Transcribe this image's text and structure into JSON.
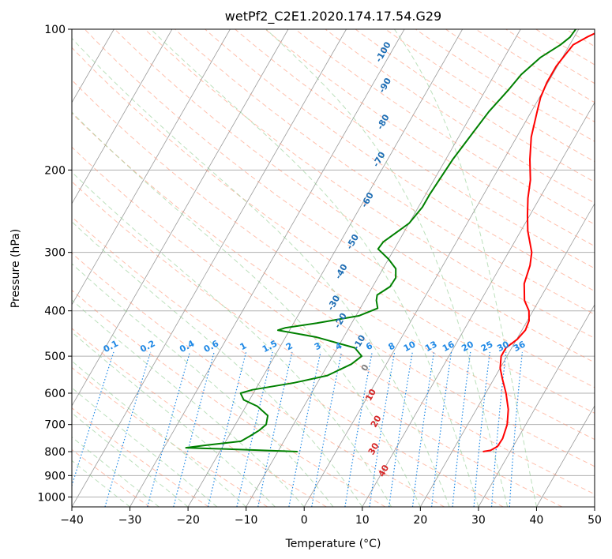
{
  "chart_data": {
    "type": "line",
    "subtype": "skew-T log-P diagram",
    "title": "wetPf2_C2E1.2020.174.17.54.G29",
    "xlabel": "Temperature (°C)",
    "ylabel": "Pressure (hPa)",
    "xlim": [
      -40,
      50
    ],
    "ylim": [
      1050,
      100
    ],
    "y_scale": "log",
    "x_ticks": [
      "−40",
      "−30",
      "−20",
      "−10",
      "0",
      "10",
      "20",
      "30",
      "40",
      "50"
    ],
    "x_tick_values": [
      -40,
      -30,
      -20,
      -10,
      0,
      10,
      20,
      30,
      40,
      50
    ],
    "y_ticks": [
      "100",
      "200",
      "300",
      "400",
      "500",
      "600",
      "700",
      "800",
      "900",
      "1000"
    ],
    "y_tick_values": [
      100,
      200,
      300,
      400,
      500,
      600,
      700,
      800,
      900,
      1000
    ],
    "grid": true,
    "series": [
      {
        "name": "",
        "role": "temperature",
        "color": "#ff0000",
        "points": [
          [
            800,
            25.3
          ],
          [
            795,
            26.5
          ],
          [
            780,
            27.3
          ],
          [
            750,
            27.4
          ],
          [
            700,
            26.8
          ],
          [
            650,
            25.5
          ],
          [
            600,
            23.5
          ],
          [
            560,
            21.5
          ],
          [
            530,
            20.0
          ],
          [
            500,
            19.0
          ],
          [
            480,
            19.0
          ],
          [
            460,
            20.1
          ],
          [
            440,
            20.6
          ],
          [
            420,
            20.3
          ],
          [
            400,
            19.3
          ],
          [
            380,
            17.5
          ],
          [
            350,
            15.8
          ],
          [
            320,
            15.0
          ],
          [
            300,
            14.0
          ],
          [
            270,
            11.2
          ],
          [
            250,
            9.6
          ],
          [
            230,
            8.0
          ],
          [
            210,
            6.6
          ],
          [
            190,
            4.5
          ],
          [
            170,
            2.5
          ],
          [
            150,
            1.0
          ],
          [
            140,
            0.2
          ],
          [
            130,
            -0.2
          ],
          [
            120,
            -0.2
          ],
          [
            115,
            0.1
          ],
          [
            108,
            0.6
          ],
          [
            104,
            2.2
          ],
          [
            100,
            4.3
          ]
        ]
      },
      {
        "name": "",
        "role": "dewpoint",
        "color": "#008000",
        "points": [
          [
            800,
            -6.6
          ],
          [
            790,
            -19.0
          ],
          [
            785,
            -26.2
          ],
          [
            775,
            -23.0
          ],
          [
            760,
            -17.4
          ],
          [
            740,
            -16.3
          ],
          [
            720,
            -15.3
          ],
          [
            700,
            -14.7
          ],
          [
            670,
            -15.3
          ],
          [
            640,
            -18.0
          ],
          [
            620,
            -21.0
          ],
          [
            600,
            -22.2
          ],
          [
            590,
            -20.5
          ],
          [
            570,
            -14.0
          ],
          [
            550,
            -9.0
          ],
          [
            520,
            -6.0
          ],
          [
            500,
            -5.0
          ],
          [
            480,
            -7.0
          ],
          [
            455,
            -14.8
          ],
          [
            440,
            -22.0
          ],
          [
            435,
            -21.0
          ],
          [
            425,
            -16.0
          ],
          [
            410,
            -9.5
          ],
          [
            395,
            -7.0
          ],
          [
            380,
            -8.0
          ],
          [
            370,
            -8.4
          ],
          [
            355,
            -7.0
          ],
          [
            340,
            -6.9
          ],
          [
            325,
            -7.8
          ],
          [
            310,
            -10.0
          ],
          [
            295,
            -12.8
          ],
          [
            285,
            -12.6
          ],
          [
            260,
            -10.0
          ],
          [
            240,
            -9.3
          ],
          [
            225,
            -9.3
          ],
          [
            210,
            -9.1
          ],
          [
            190,
            -8.8
          ],
          [
            170,
            -8.1
          ],
          [
            150,
            -7.3
          ],
          [
            135,
            -6.1
          ],
          [
            125,
            -5.4
          ],
          [
            115,
            -3.8
          ],
          [
            108,
            -1.6
          ],
          [
            104,
            -0.7
          ],
          [
            100,
            -0.5
          ]
        ]
      }
    ],
    "dry_adiabat_labels": [
      "-100",
      "-90",
      "-80",
      "-70",
      "-60",
      "-50",
      "-40",
      "-30",
      "-20",
      "-10",
      "0",
      "10",
      "20",
      "30",
      "40"
    ],
    "mixing_ratio_labels": [
      "0.1",
      "0.2",
      "0.4",
      "0.6",
      "1",
      "1.5",
      "2",
      "3",
      "4",
      "6",
      "8",
      "10",
      "13",
      "16",
      "20",
      "25",
      "30",
      "36"
    ],
    "colors": {
      "temperature": "#ff0000",
      "dewpoint": "#008000",
      "isotherm": "#999999",
      "dry_adiabat": "#ff8c69",
      "moist_adiabat": "#8fcc8f",
      "mixing_ratio": "#1e88e5",
      "dry_adiabat_label": "#1f6eb4",
      "warm_adiabat_label": "#d62728",
      "zero_label": "#808080",
      "mix_label": "#1e88e5"
    }
  }
}
